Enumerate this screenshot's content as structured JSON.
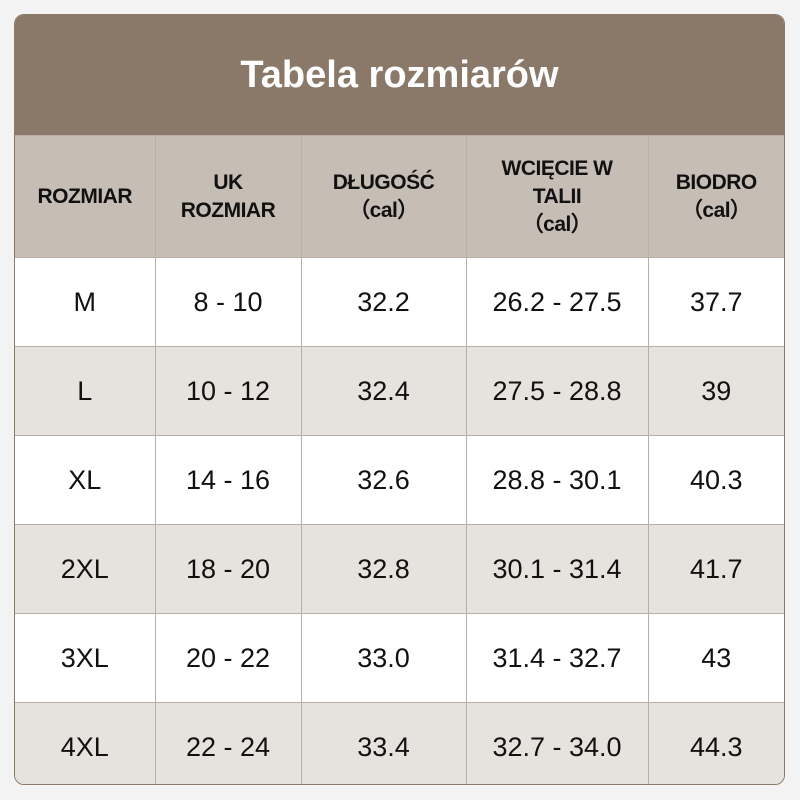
{
  "title": "Tabela rozmiarów",
  "headers": [
    {
      "lines": [
        "ROZMIAR"
      ]
    },
    {
      "lines": [
        "UK",
        "ROZMIAR"
      ]
    },
    {
      "lines": [
        "DŁUGOŚĆ",
        "（cal）"
      ]
    },
    {
      "lines": [
        "WCIĘCIE W",
        "TALII",
        "（cal）"
      ]
    },
    {
      "lines": [
        "BIODRO",
        "（cal）"
      ]
    }
  ],
  "rows": [
    [
      "M",
      "8 - 10",
      "32.2",
      "26.2 - 27.5",
      "37.7"
    ],
    [
      "L",
      "10 - 12",
      "32.4",
      "27.5 - 28.8",
      "39"
    ],
    [
      "XL",
      "14 - 16",
      "32.6",
      "28.8 - 30.1",
      "40.3"
    ],
    [
      "2XL",
      "18 - 20",
      "32.8",
      "30.1 - 31.4",
      "41.7"
    ],
    [
      "3XL",
      "20 - 22",
      "33.0",
      "31.4 - 32.7",
      "43"
    ],
    [
      "4XL",
      "22 - 24",
      "33.4",
      "32.7 - 34.0",
      "44.3"
    ]
  ],
  "colors": {
    "title_band": "#8a7868",
    "header": "#c6bdb4",
    "alt_row": "#e6e2dd"
  }
}
